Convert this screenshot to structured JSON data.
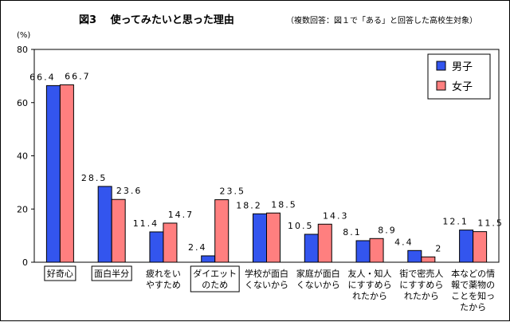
{
  "chart_data": {
    "type": "bar",
    "title": "図3　 使ってみたいと思った理由",
    "subtitle": "（複数回答：図１で「ある」と回答した高校生対象）",
    "ylabel": "(%)",
    "ylim": [
      0,
      80
    ],
    "yticks": [
      0,
      20,
      40,
      60,
      80
    ],
    "grid": false,
    "legend_position": "top-right",
    "categories": [
      [
        "好奇心"
      ],
      [
        "面白半分"
      ],
      [
        "疲れをい",
        "やすため"
      ],
      [
        "ダイエット",
        "のため"
      ],
      [
        "学校が面白",
        "くないから"
      ],
      [
        "家庭が面白",
        "くないから"
      ],
      [
        "友人・知人",
        "にすすめら",
        "れたから"
      ],
      [
        "街で密売人",
        "にすすめら",
        "れたから"
      ],
      [
        "本などの情",
        "報で薬物の",
        "ことを知っ",
        "たから"
      ]
    ],
    "boxed_categories": [
      0,
      1,
      3
    ],
    "series": [
      {
        "name": "男子",
        "color": "#3355ee",
        "values": [
          66.4,
          28.5,
          11.4,
          2.4,
          18.2,
          10.5,
          8.1,
          4.4,
          12.1
        ]
      },
      {
        "name": "女子",
        "color": "#ff7f7f",
        "values": [
          66.7,
          23.6,
          14.7,
          23.5,
          18.5,
          14.3,
          8.9,
          2,
          11.5
        ]
      }
    ],
    "value_labels": [
      [
        "66.4",
        "28.5",
        "11.4",
        "2.4",
        "18.2",
        "10.5",
        "8.1",
        "4.4",
        "12.1"
      ],
      [
        "66.7",
        "23.6",
        "14.7",
        "23.5",
        "18.5",
        "14.3",
        "8.9",
        "2",
        "11.5"
      ]
    ]
  }
}
